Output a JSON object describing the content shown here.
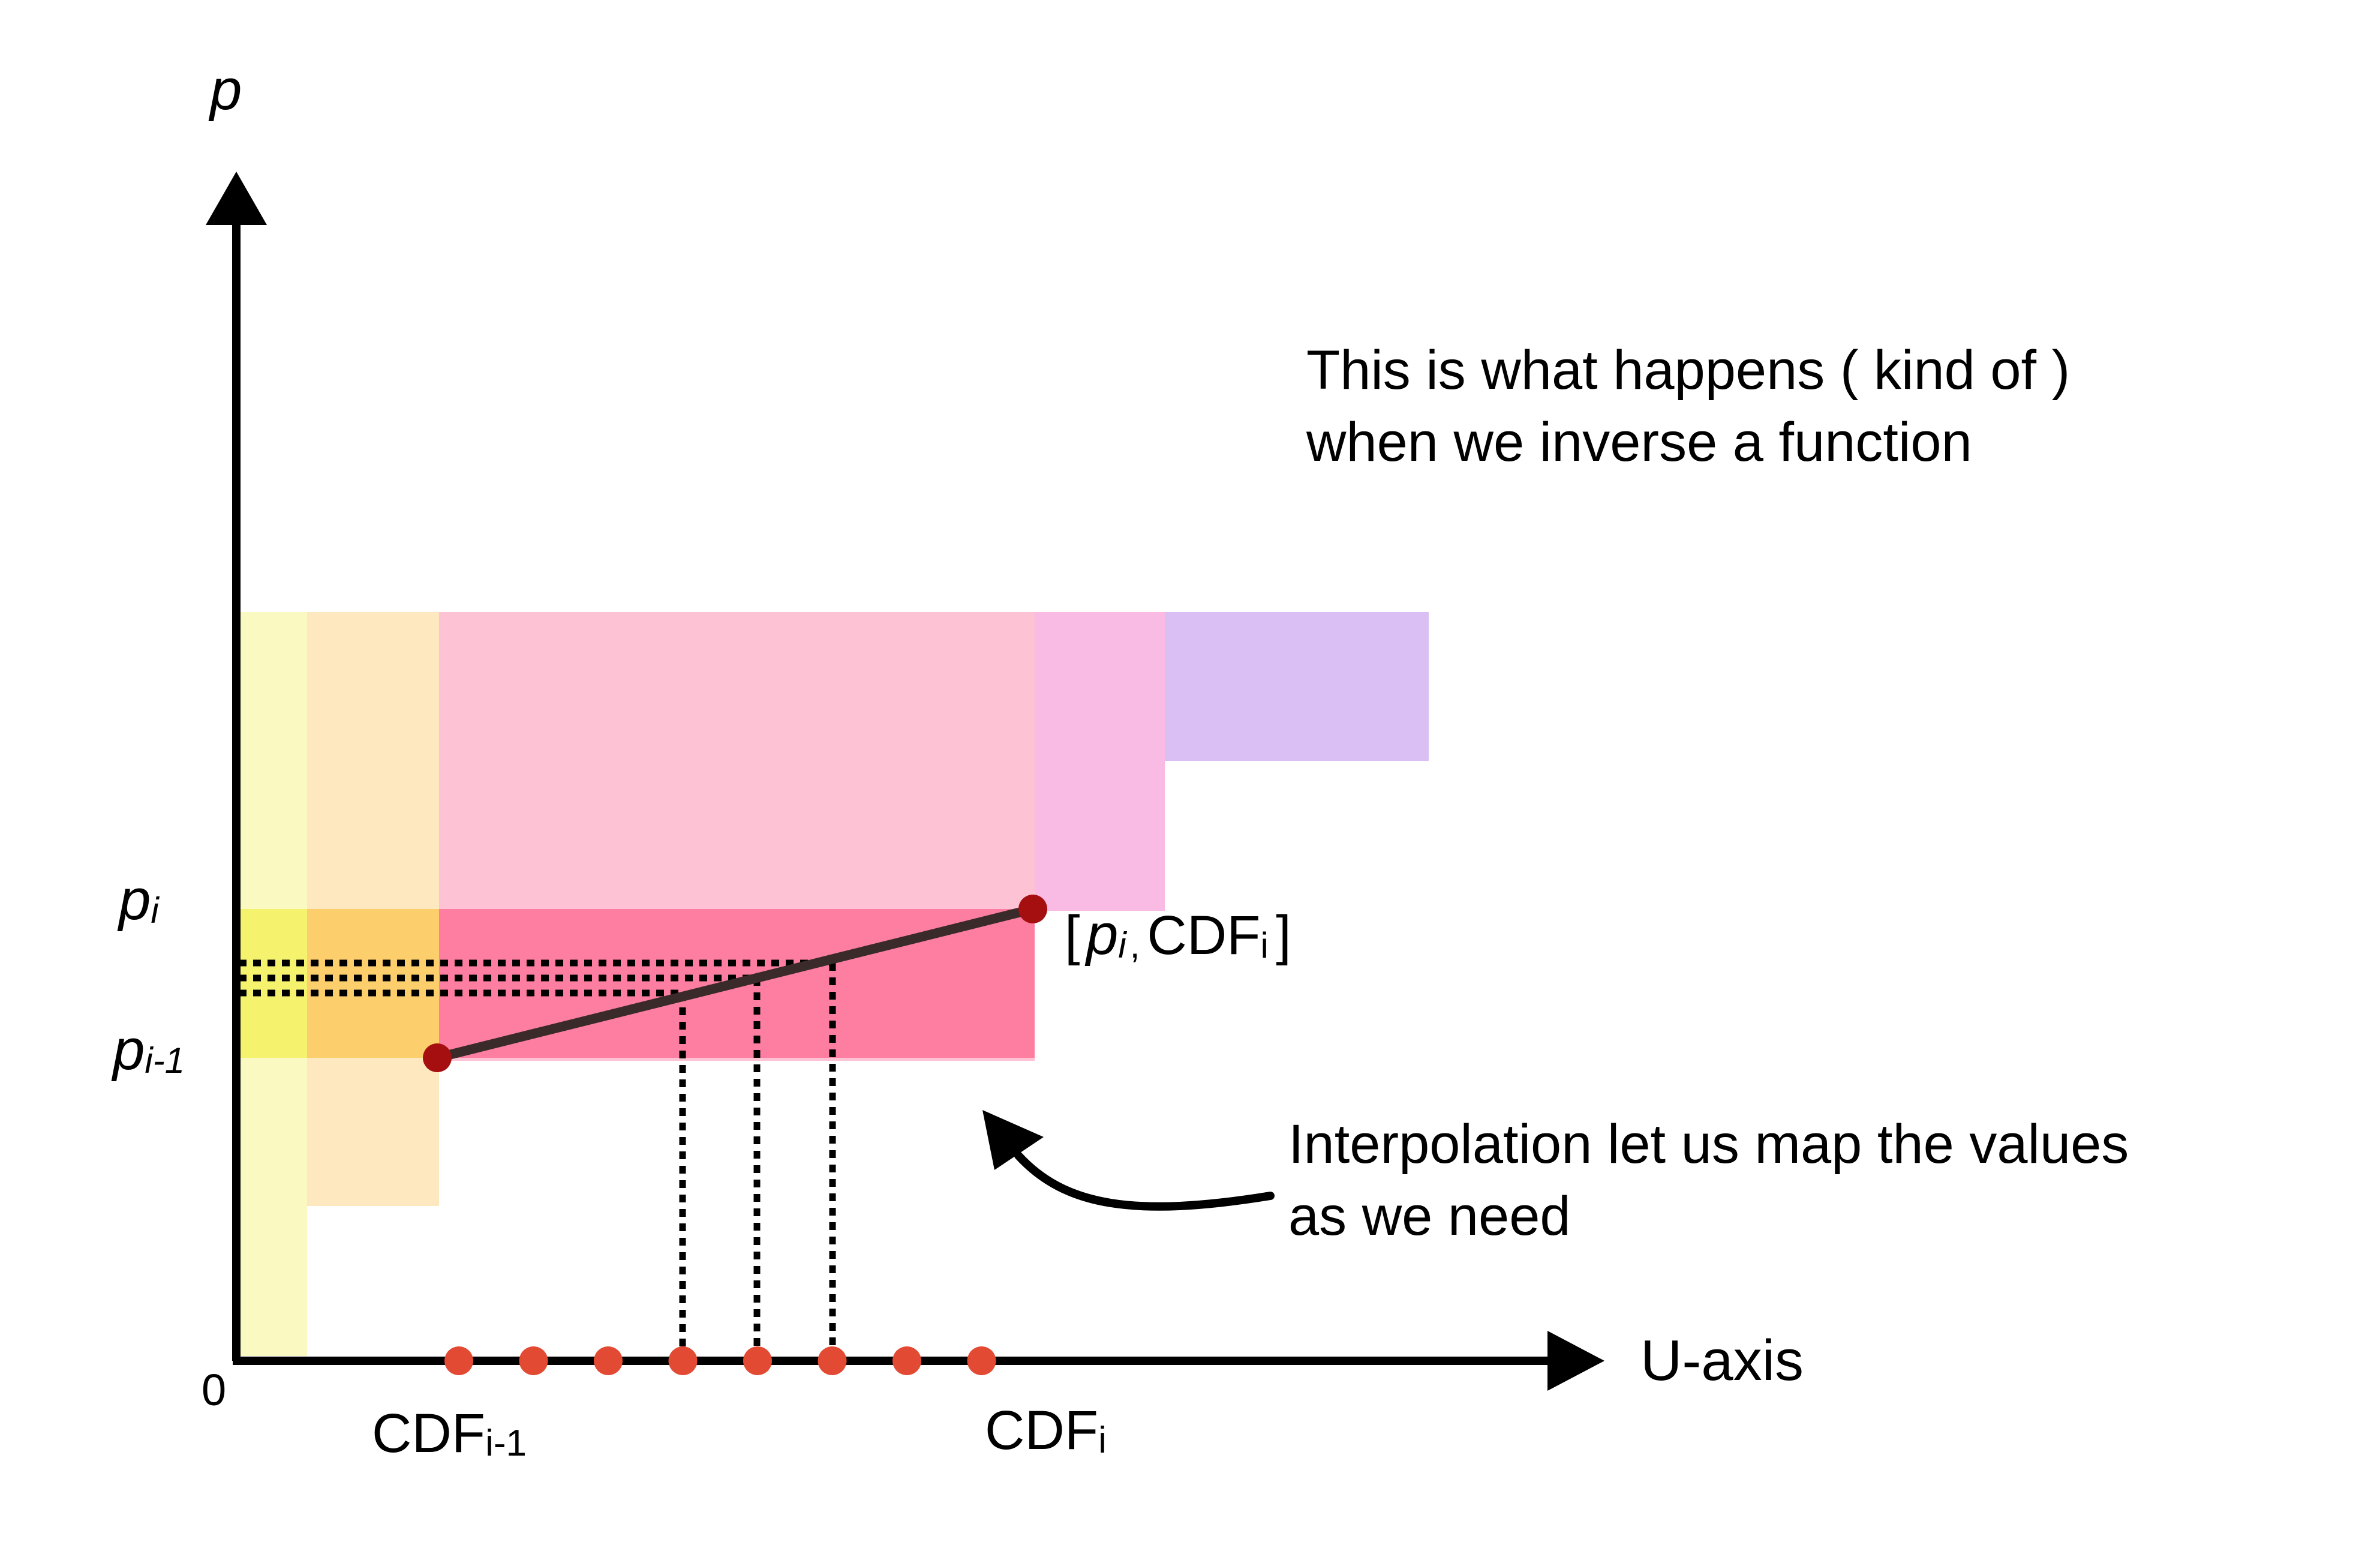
{
  "axes": {
    "y_label": "p",
    "x_label": "U-axis",
    "origin_label": "0"
  },
  "y_ticks": {
    "p_i_base": "p",
    "p_i_sub": "i",
    "p_im1_base": "p",
    "p_im1_sub": "i-1"
  },
  "x_ticks": {
    "cdf_im1_base": "CDF",
    "cdf_im1_sub": "i-1",
    "cdf_i_base": "CDF",
    "cdf_i_sub": "i"
  },
  "point_label": {
    "open": "[",
    "p_base": "p",
    "p_sub": "i",
    "sep": ",",
    "cdf_base": "CDF",
    "cdf_sub": "i",
    "close": "]"
  },
  "annotations": {
    "inverse_line1": "This is what happens ( kind of )",
    "inverse_line2": "when we inverse a function",
    "interp_line1": "Interpolation let us map the values",
    "interp_line2": "as we need"
  },
  "colors": {
    "yellow": "#fbf9c2",
    "peach": "#fde8bf",
    "pink": "#fdc2d4",
    "pink_light": "#f9bbe3",
    "lavender": "#d9bff3",
    "bright_yellow": "#f5f36d",
    "orange": "#fdce6c",
    "hot_pink": "#fd7ea0",
    "endpoint": "#a60f10",
    "sample_dot": "#e34a33",
    "axis": "#000000"
  },
  "sample_dots_count": 8
}
